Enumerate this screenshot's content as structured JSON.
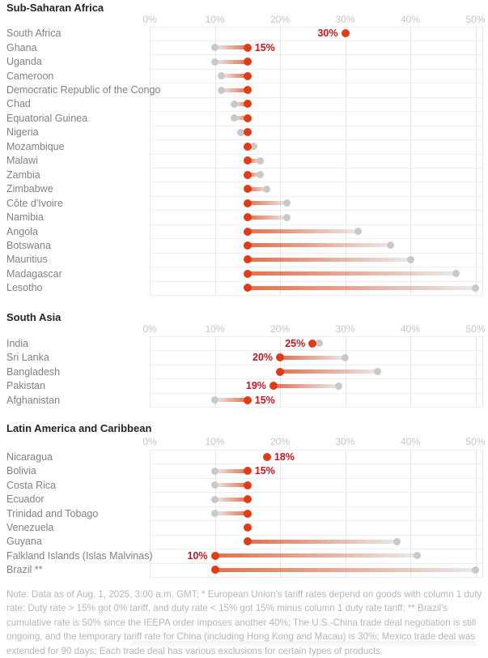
{
  "colors": {
    "red_dot": "#e03d17",
    "gray_dot": "#c9c9c9",
    "value_label": "#c4161d",
    "section_title": "#252525",
    "country_label": "#828282",
    "axis_label": "#c5c5c5",
    "gridline": "#e6e6e6",
    "row_line": "#efefef",
    "note_text": "#b6b6b6"
  },
  "note": "Note: Data as of Aug. 1, 2025, 3:00 a.m. GMT; * European Union’s tariff rates depend on goods with column 1 duty rate: Duty rate > 15% got 0% tariff, and duty rate < 15% got 15% minus column 1 duty rate tariff; ** Brazil’s cumulative rate is 50% since the IEEPA order imposes another 40%; The U.S.-China trade deal negotiation is still ongoing, and the temporary tariff rate for China (including Hong Kong and Macau) is 30%; Mexico trade deal was extended for 90 days; Each trade deal has various exclusions for certain types of products.",
  "chart_data": [
    {
      "type": "dumbbell",
      "title": "Sub-Saharan Africa",
      "x_axis": {
        "min": 0,
        "max": 50,
        "tick_step": 10,
        "ticks": [
          "0%",
          "10%",
          "20%",
          "30%",
          "40%",
          "50%"
        ],
        "grid": true
      },
      "rows": [
        {
          "country": "South Africa",
          "gray": null,
          "red": 30,
          "label": "30%",
          "label_side": "left"
        },
        {
          "country": "Ghana",
          "gray": 10,
          "red": 15,
          "label": "15%",
          "label_side": "right"
        },
        {
          "country": "Uganda",
          "gray": 10,
          "red": 15,
          "label": null,
          "label_side": null
        },
        {
          "country": "Cameroon",
          "gray": 11,
          "red": 15,
          "label": null,
          "label_side": null
        },
        {
          "country": "Democratic Republic of the Congo",
          "gray": 11,
          "red": 15,
          "label": null,
          "label_side": null
        },
        {
          "country": "Chad",
          "gray": 13,
          "red": 15,
          "label": null,
          "label_side": null
        },
        {
          "country": "Equatorial Guinea",
          "gray": 13,
          "red": 15,
          "label": null,
          "label_side": null
        },
        {
          "country": "Nigeria",
          "gray": 14,
          "red": 15,
          "label": null,
          "label_side": null
        },
        {
          "country": "Mozambique",
          "gray": 16,
          "red": 15,
          "label": null,
          "label_side": null
        },
        {
          "country": "Malawi",
          "gray": 17,
          "red": 15,
          "label": null,
          "label_side": null
        },
        {
          "country": "Zambia",
          "gray": 17,
          "red": 15,
          "label": null,
          "label_side": null
        },
        {
          "country": "Zimbabwe",
          "gray": 18,
          "red": 15,
          "label": null,
          "label_side": null
        },
        {
          "country": "Côte d'Ivoire",
          "gray": 21,
          "red": 15,
          "label": null,
          "label_side": null
        },
        {
          "country": "Namibia",
          "gray": 21,
          "red": 15,
          "label": null,
          "label_side": null
        },
        {
          "country": "Angola",
          "gray": 32,
          "red": 15,
          "label": null,
          "label_side": null
        },
        {
          "country": "Botswana",
          "gray": 37,
          "red": 15,
          "label": null,
          "label_side": null
        },
        {
          "country": "Mauritius",
          "gray": 40,
          "red": 15,
          "label": null,
          "label_side": null
        },
        {
          "country": "Madagascar",
          "gray": 47,
          "red": 15,
          "label": null,
          "label_side": null
        },
        {
          "country": "Lesotho",
          "gray": 50,
          "red": 15,
          "label": null,
          "label_side": null
        }
      ]
    },
    {
      "type": "dumbbell",
      "title": "South Asia",
      "x_axis": {
        "min": 0,
        "max": 50,
        "tick_step": 10,
        "ticks": [
          "0%",
          "10%",
          "20%",
          "30%",
          "40%",
          "50%"
        ],
        "grid": true
      },
      "rows": [
        {
          "country": "India",
          "gray": 26,
          "red": 25,
          "label": "25%",
          "label_side": "left"
        },
        {
          "country": "Sri Lanka",
          "gray": 30,
          "red": 20,
          "label": "20%",
          "label_side": "left"
        },
        {
          "country": "Bangladesh",
          "gray": 35,
          "red": 20,
          "label": null,
          "label_side": null
        },
        {
          "country": "Pakistan",
          "gray": 29,
          "red": 19,
          "label": "19%",
          "label_side": "left"
        },
        {
          "country": "Afghanistan",
          "gray": 10,
          "red": 15,
          "label": "15%",
          "label_side": "right"
        }
      ]
    },
    {
      "type": "dumbbell",
      "title": "Latin America and Caribbean",
      "x_axis": {
        "min": 0,
        "max": 50,
        "tick_step": 10,
        "ticks": [
          "0%",
          "10%",
          "20%",
          "30%",
          "40%",
          "50%"
        ],
        "grid": true
      },
      "rows": [
        {
          "country": "Nicaragua",
          "gray": null,
          "red": 18,
          "label": "18%",
          "label_side": "right"
        },
        {
          "country": "Bolivia",
          "gray": 10,
          "red": 15,
          "label": "15%",
          "label_side": "right"
        },
        {
          "country": "Costa Rica",
          "gray": 10,
          "red": 15,
          "label": null,
          "label_side": null
        },
        {
          "country": "Ecuador",
          "gray": 10,
          "red": 15,
          "label": null,
          "label_side": null
        },
        {
          "country": "Trinidad and Tobago",
          "gray": 10,
          "red": 15,
          "label": null,
          "label_side": null
        },
        {
          "country": "Venezuela",
          "gray": null,
          "red": 15,
          "label": null,
          "label_side": null
        },
        {
          "country": "Guyana",
          "gray": 38,
          "red": 15,
          "label": null,
          "label_side": null
        },
        {
          "country": "Falkland Islands (Islas Malvinas)",
          "gray": 41,
          "red": 10,
          "label": "10%",
          "label_side": "left"
        },
        {
          "country": "Brazil **",
          "gray": 50,
          "red": 10,
          "label": null,
          "label_side": null
        }
      ]
    }
  ]
}
